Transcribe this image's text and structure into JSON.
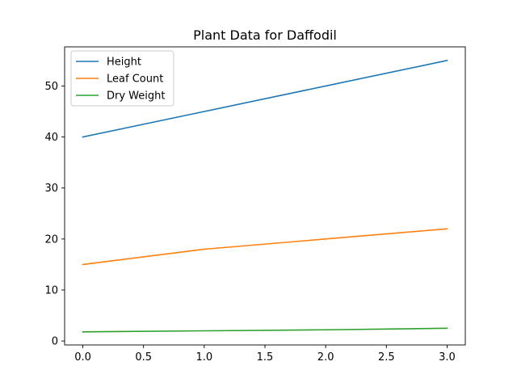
{
  "chart_data": {
    "type": "line",
    "title": "Plant Data for Daffodil",
    "xlabel": "",
    "ylabel": "",
    "x": [
      0,
      1,
      2,
      3
    ],
    "xlim": [
      -0.15,
      3.15
    ],
    "ylim": [
      -0.77,
      57.67
    ],
    "xticks": [
      0.0,
      0.5,
      1.0,
      1.5,
      2.0,
      2.5,
      3.0
    ],
    "xtick_labels": [
      "0.0",
      "0.5",
      "1.0",
      "1.5",
      "2.0",
      "2.5",
      "3.0"
    ],
    "yticks": [
      0,
      10,
      20,
      30,
      40,
      50
    ],
    "ytick_labels": [
      "0",
      "10",
      "20",
      "30",
      "40",
      "50"
    ],
    "grid": false,
    "legend_position": "upper-left",
    "series": [
      {
        "name": "Height",
        "values": [
          40,
          45,
          50,
          55
        ],
        "color": "#1f77b4"
      },
      {
        "name": "Leaf Count",
        "values": [
          15,
          18,
          20,
          22
        ],
        "color": "#ff7f0e"
      },
      {
        "name": "Dry Weight",
        "values": [
          1.8,
          2.0,
          2.2,
          2.5
        ],
        "color": "#2ca02c"
      }
    ]
  }
}
